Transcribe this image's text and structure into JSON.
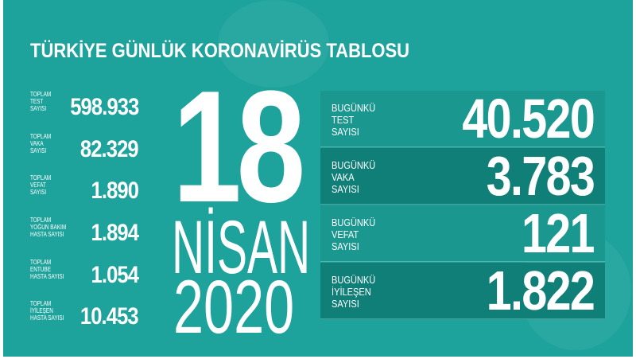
{
  "title": "TÜRKİYE GÜNLÜK KORONAVİRÜS TABLOSU",
  "colors": {
    "background": "#1ea39c",
    "box_light": "#1a9890",
    "box_dark": "#0f7f78",
    "text": "#ffffff"
  },
  "totals": [
    {
      "label": [
        "TOPLAM",
        "TEST",
        "SAYISI"
      ],
      "value": "598.933"
    },
    {
      "label": [
        "TOPLAM",
        "VAKA",
        "SAYISI"
      ],
      "value": "82.329"
    },
    {
      "label": [
        "TOPLAM",
        "VEFAT",
        "SAYISI"
      ],
      "value": "1.890"
    },
    {
      "label": [
        "TOPLAM",
        "YOĞUN BAKIM",
        "HASTA SAYISI"
      ],
      "value": "1.894"
    },
    {
      "label": [
        "TOPLAM",
        "ENTUBE",
        "HASTA SAYISI"
      ],
      "value": "1.054"
    },
    {
      "label": [
        "TOPLAM",
        "İYİLEŞEN",
        "HASTA SAYISI"
      ],
      "value": "10.453"
    }
  ],
  "date": {
    "day": "18",
    "month": "NİSAN",
    "year": "2020"
  },
  "today": [
    {
      "label": [
        "BUGÜNKÜ",
        "TEST",
        "SAYISI"
      ],
      "value": "40.520"
    },
    {
      "label": [
        "BUGÜNKÜ",
        "VAKA",
        "SAYISI"
      ],
      "value": "3.783"
    },
    {
      "label": [
        "BUGÜNKÜ",
        "VEFAT",
        "SAYISI"
      ],
      "value": "121"
    },
    {
      "label": [
        "BUGÜNKÜ",
        "İYİLEŞEN",
        "SAYISI"
      ],
      "value": "1.822"
    }
  ]
}
